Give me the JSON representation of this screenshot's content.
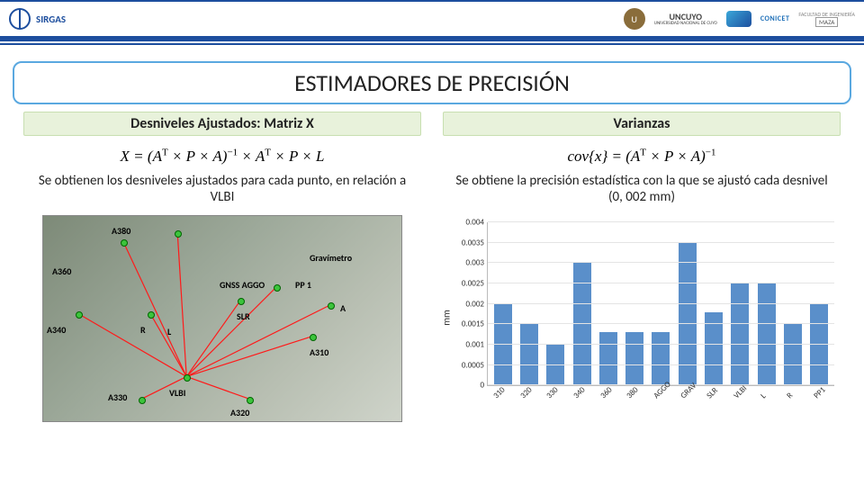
{
  "header": {
    "left_logo_text": "SIRGAS",
    "right": {
      "uncuyo_main": "UNCUYO",
      "uncuyo_sub": "UNIVERSIDAD NACIONAL DE CUYO",
      "conicet": "CONICET",
      "facultad": "FACULTAD DE INGENIERÍA",
      "maza": "MAZA"
    }
  },
  "title": "ESTIMADORES DE PRECISIÓN",
  "left": {
    "section": "Desniveles Ajustados: Matriz X",
    "formula": "X = (Aᵀ × P × A)⁻¹ × Aᵀ × P × L",
    "desc": "Se obtienen los desniveles ajustados para cada punto, en relación a VLBI",
    "points": [
      "A380",
      "A360",
      "A340",
      "R",
      "L",
      "A330",
      "VLBI",
      "SLR",
      "A320",
      "A310",
      "A",
      "PP 1",
      "GNSS AGGO",
      "Gravímetro"
    ]
  },
  "right": {
    "section": "Varianzas",
    "formula": "cov{x} = (Aᵀ × P × A)⁻¹",
    "desc": "Se obtiene la precisión estadística con la que se ajustó cada desnivel (0, 002 mm)"
  },
  "chart": {
    "type": "bar",
    "ylabel": "mm",
    "ymax": 0.004,
    "ytick_step": 0.0005,
    "yticks": [
      "0",
      "0.0005",
      "0.001",
      "0.0015",
      "0.002",
      "0.0025",
      "0.003",
      "0.0035",
      "0.004"
    ],
    "bar_color": "#5a8fca",
    "grid_color": "#e4e4e4",
    "background_color": "#ffffff",
    "categories": [
      "310",
      "320",
      "330",
      "340",
      "360",
      "380",
      "AGGO",
      "GRAV",
      "SLR",
      "VLBI",
      "L",
      "R",
      "PP1"
    ],
    "values": [
      0.002,
      0.0015,
      0.001,
      0.003,
      0.0013,
      0.0013,
      0.0013,
      0.0035,
      0.0018,
      0.0025,
      0.0025,
      0.0015,
      0.002
    ]
  }
}
